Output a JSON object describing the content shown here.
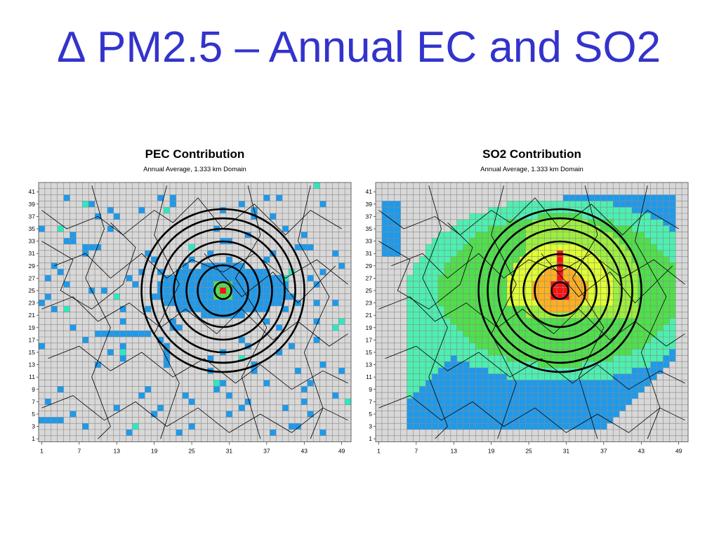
{
  "slide": {
    "title": "∆ PM2.5 – Annual EC and SO2"
  },
  "colors": {
    "title": "#3333cc",
    "cell_background": "#d8d8d8",
    "grid_line": "#8a8a8a",
    "level_blue": "#1e9aeb",
    "level_cyan": "#2ee8c0",
    "level_aqua": "#4cf0b0",
    "level_lgreen": "#9cf03c",
    "level_green": "#4ee04a",
    "level_yellow": "#e0ff30",
    "level_orange": "#ffb020",
    "level_red": "#ff1010",
    "boundary_line": "#000000",
    "ring": "#000000"
  },
  "chart_data": [
    {
      "type": "heatmap",
      "title": "PEC Contribution",
      "subtitle": "Annual Average, 1.333 km Domain",
      "x_tick_labels": [
        "1",
        "7",
        "13",
        "19",
        "25",
        "31",
        "37",
        "43",
        "49"
      ],
      "y_tick_labels": [
        "41",
        "39",
        "37",
        "35",
        "33",
        "31",
        "29",
        "27",
        "25",
        "23",
        "21",
        "19",
        "17",
        "15",
        "13",
        "11",
        "9",
        "7",
        "5",
        "3",
        "1"
      ],
      "xlim": [
        1,
        50
      ],
      "ylim": [
        1,
        42
      ],
      "grid": true,
      "ring_center": [
        30,
        25
      ],
      "ring_count": 6
    },
    {
      "type": "heatmap",
      "title": "SO2 Contribution",
      "subtitle": "Annual Average, 1.333 km Domain",
      "x_tick_labels": [
        "1",
        "7",
        "13",
        "19",
        "25",
        "31",
        "37",
        "43",
        "49"
      ],
      "y_tick_labels": [
        "41",
        "39",
        "37",
        "35",
        "33",
        "31",
        "29",
        "27",
        "25",
        "23",
        "21",
        "19",
        "17",
        "15",
        "13",
        "11",
        "9",
        "7",
        "5",
        "3",
        "1"
      ],
      "xlim": [
        1,
        50
      ],
      "ylim": [
        1,
        42
      ],
      "grid": true,
      "ring_center": [
        30,
        25
      ],
      "ring_count": 6
    }
  ]
}
